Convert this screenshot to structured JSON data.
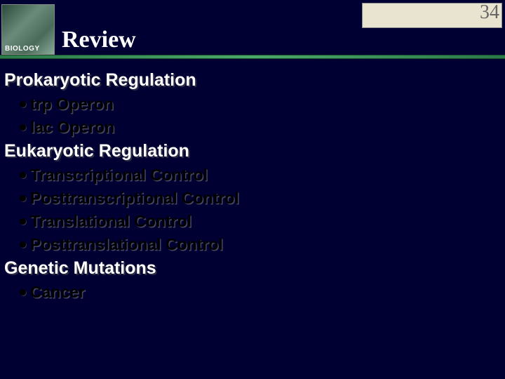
{
  "header": {
    "logo_label": "BIOLOGY",
    "title": "Review",
    "page_number": "34"
  },
  "sections": [
    {
      "heading": "Prokaryotic Regulation",
      "bullets": [
        "trp Operon",
        "lac Operon"
      ]
    },
    {
      "heading": "Eukaryotic Regulation",
      "bullets": [
        "Transcriptional Control",
        "Posttranscriptional Control",
        "Translational Control",
        "Posttranslational Control"
      ]
    },
    {
      "heading": "Genetic Mutations",
      "bullets": [
        "Cancer"
      ]
    }
  ],
  "colors": {
    "background": "#000033",
    "heading_text": "#ffffff",
    "bullet_text": "#000000",
    "divider": "#4aaa6a"
  }
}
